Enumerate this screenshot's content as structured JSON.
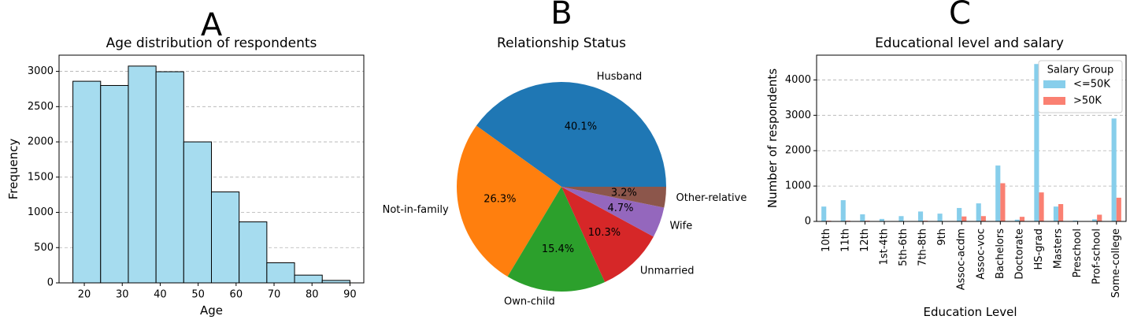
{
  "chart_data": [
    {
      "panel_label": "A",
      "type": "bar",
      "title": "Age distribution of respondents",
      "xlabel": "Age",
      "ylabel": "Frequency",
      "bin_edges": [
        17,
        24.3,
        31.6,
        38.9,
        46.2,
        53.5,
        60.8,
        68.1,
        75.4,
        82.7,
        90
      ],
      "values": [
        2860,
        2800,
        3075,
        2995,
        2000,
        1290,
        865,
        285,
        110,
        35
      ],
      "xlim": [
        13.35,
        93.65
      ],
      "ylim": [
        0,
        3230
      ],
      "xticks": [
        20,
        30,
        40,
        50,
        60,
        70,
        80,
        90
      ],
      "yticks": [
        0,
        500,
        1000,
        1500,
        2000,
        2500,
        3000
      ],
      "color": "#a6dcef",
      "grid": "y"
    },
    {
      "panel_label": "B",
      "type": "pie",
      "title": "Relationship Status",
      "labels": [
        "Husband",
        "Not-in-family",
        "Own-child",
        "Unmarried",
        "Wife",
        "Other-relative"
      ],
      "values": [
        40.1,
        26.3,
        15.4,
        10.3,
        4.7,
        3.2
      ],
      "pct_labels": [
        "40.1%",
        "26.3%",
        "15.4%",
        "10.3%",
        "4.7%",
        "3.2%"
      ],
      "colors": [
        "#1f77b4",
        "#ff7f0e",
        "#2ca02c",
        "#d62728",
        "#9467bd",
        "#8c564b"
      ]
    },
    {
      "panel_label": "C",
      "type": "bar",
      "title": "Educational level and salary",
      "xlabel": "Education Level",
      "ylabel": "Number of respondents",
      "categories": [
        "10th",
        "11th",
        "12th",
        "1st-4th",
        "5th-6th",
        "7th-8th",
        "9th",
        "Assoc-acdm",
        "Assoc-voc",
        "Bachelors",
        "Doctorate",
        "HS-grad",
        "Masters",
        "Preschool",
        "Prof-school",
        "Some-college"
      ],
      "series": [
        {
          "name": "<=50K",
          "color": "#87ceeb",
          "values": [
            420,
            600,
            200,
            70,
            150,
            280,
            220,
            380,
            510,
            1580,
            50,
            4450,
            420,
            25,
            60,
            2910
          ]
        },
        {
          "name": ">50K",
          "color": "#fa8072",
          "values": [
            20,
            20,
            20,
            5,
            5,
            20,
            10,
            140,
            150,
            1080,
            130,
            820,
            490,
            0,
            190,
            670
          ]
        }
      ],
      "ylim": [
        0,
        4700
      ],
      "yticks": [
        0,
        1000,
        2000,
        3000,
        4000
      ],
      "legend_title": "Salary Group",
      "legend_loc": "top-right",
      "grid": "y"
    }
  ]
}
